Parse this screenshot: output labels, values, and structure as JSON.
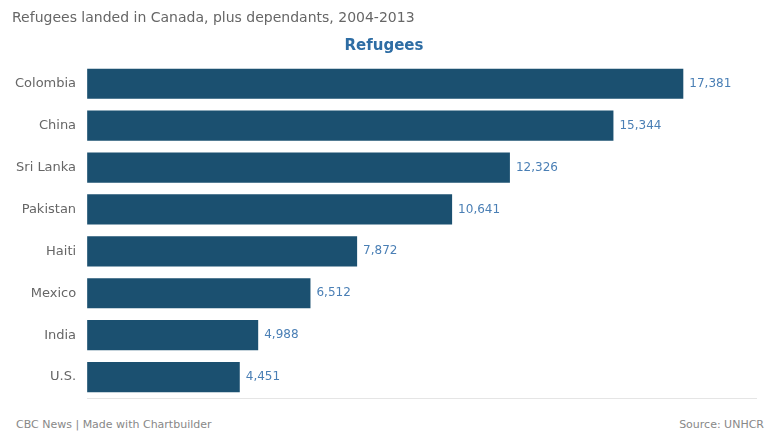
{
  "chart_data": {
    "type": "bar",
    "orientation": "horizontal",
    "title": "Refugees landed in Canada, plus dependants, 2004-2013",
    "subtitle": "Refugees",
    "annotations": [
      "CBC News | Made with Chartbuilder",
      "Source: UNHCR"
    ],
    "categories": [
      "Colombia",
      "China",
      "Sri Lanka",
      "Pakistan",
      "Haiti",
      "Mexico",
      "India",
      "U.S."
    ],
    "values": [
      17381,
      15344,
      12326,
      10641,
      7872,
      6512,
      4988,
      4451
    ],
    "value_labels": [
      "17,381",
      "15,344",
      "12,326",
      "10,641",
      "7,872",
      "6,512",
      "4,988",
      "4,451"
    ],
    "data_labels": true,
    "color": "#1b5070",
    "xlim": [
      0,
      19500
    ],
    "grid": false,
    "tick_labels": "y"
  }
}
